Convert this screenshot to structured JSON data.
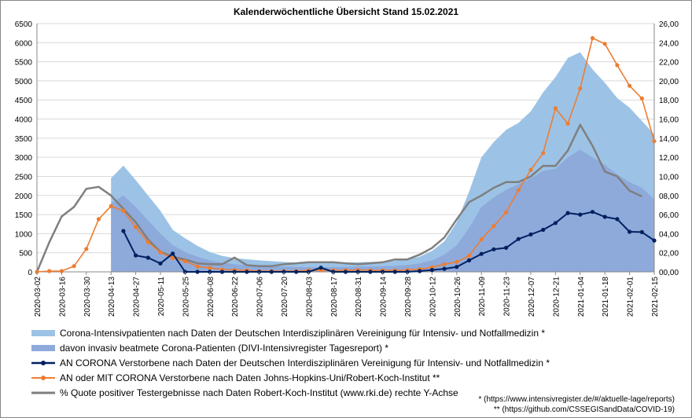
{
  "chart_data": {
    "type": "area",
    "title": "Kalenderwöchentliche Übersicht Stand 15.02.2021",
    "categories": [
      "2020-03-02",
      "2020-03-09",
      "2020-03-16",
      "2020-03-23",
      "2020-03-30",
      "2020-04-06",
      "2020-04-13",
      "2020-04-20",
      "2020-04-27",
      "2020-05-04",
      "2020-05-11",
      "2020-05-18",
      "2020-05-25",
      "2020-06-01",
      "2020-06-08",
      "2020-06-15",
      "2020-06-22",
      "2020-06-29",
      "2020-07-06",
      "2020-07-13",
      "2020-07-20",
      "2020-07-27",
      "2020-08-03",
      "2020-08-10",
      "2020-08-17",
      "2020-08-24",
      "2020-08-31",
      "2020-09-07",
      "2020-09-14",
      "2020-09-21",
      "2020-09-28",
      "2020-10-05",
      "2020-10-12",
      "2020-10-19",
      "2020-10-26",
      "2020-11-02",
      "2020-11-09",
      "2020-11-16",
      "2020-11-23",
      "2020-11-30",
      "2020-12-07",
      "2020-12-14",
      "2020-12-21",
      "2020-12-28",
      "2021-01-04",
      "2021-01-11",
      "2021-01-18",
      "2021-01-25",
      "2021-02-01",
      "2021-02-08",
      "2021-02-15"
    ],
    "tick_labels": [
      "2020-03-02",
      "2020-03-16",
      "2020-03-30",
      "2020-04-13",
      "2020-04-27",
      "2020-05-11",
      "2020-05-25",
      "2020-06-08",
      "2020-06-22",
      "2020-07-06",
      "2020-07-20",
      "2020-08-03",
      "2020-08-17",
      "2020-08-31",
      "2020-09-14",
      "2020-09-28",
      "2020-10-12",
      "2020-10-26",
      "2020-11-09",
      "2020-11-23",
      "2020-12-07",
      "2020-12-21",
      "2021-01-04",
      "2021-01-18",
      "2021-02-01",
      "2021-02-15"
    ],
    "y_left": {
      "min": 0,
      "max": 6500,
      "step": 500,
      "ticks": [
        "0",
        "500",
        "1000",
        "1500",
        "2000",
        "2500",
        "3000",
        "3500",
        "4000",
        "4500",
        "5000",
        "5500",
        "6000",
        "6500"
      ]
    },
    "y_right": {
      "min": 0,
      "max": 26,
      "step": 2,
      "ticks": [
        "00,00",
        "02,00",
        "04,00",
        "06,00",
        "08,00",
        "10,00",
        "12,00",
        "14,00",
        "16,00",
        "18,00",
        "20,00",
        "22,00",
        "24,00",
        "26,00"
      ]
    },
    "series": [
      {
        "name": "Corona-Intensivpatienten nach Daten der Deutschen Interdisziplinären Vereinigung für Intensiv- und Notfallmedizin *",
        "kind": "area",
        "axis": "left",
        "color": "#9cc3e6",
        "values": [
          null,
          null,
          null,
          null,
          null,
          null,
          2450,
          2780,
          2400,
          2000,
          1600,
          1100,
          880,
          680,
          520,
          420,
          360,
          330,
          300,
          280,
          260,
          240,
          230,
          230,
          240,
          240,
          250,
          260,
          270,
          290,
          330,
          400,
          550,
          800,
          1300,
          2100,
          3000,
          3400,
          3720,
          3900,
          4200,
          4700,
          5100,
          5600,
          5750,
          5300,
          4950,
          4550,
          4300,
          3950,
          3600
        ]
      },
      {
        "name": "davon invasiv beatmete Corona-Patienten (DIVI-Intensivregister Tagesreport)  *",
        "kind": "area",
        "axis": "left",
        "color": "#8eaadb",
        "values": [
          null,
          null,
          null,
          null,
          null,
          null,
          1800,
          2000,
          1700,
          1350,
          1000,
          700,
          520,
          400,
          300,
          240,
          200,
          180,
          160,
          150,
          140,
          130,
          125,
          125,
          130,
          130,
          135,
          140,
          150,
          160,
          180,
          220,
          300,
          450,
          700,
          1150,
          1700,
          1950,
          2150,
          2300,
          2450,
          2650,
          2700,
          3000,
          3200,
          3000,
          2800,
          2550,
          2350,
          2200,
          1900
        ]
      },
      {
        "name": "AN CORONA Verstorbene nach Daten der Deutschen Interdisziplinären Vereinigung für Intensiv- und Notfallmedizin *",
        "kind": "line-markers",
        "axis": "left",
        "color": "#002060",
        "values": [
          null,
          null,
          null,
          null,
          null,
          null,
          null,
          1070,
          430,
          370,
          220,
          480,
          0,
          0,
          0,
          0,
          0,
          0,
          0,
          0,
          0,
          0,
          0,
          110,
          0,
          0,
          0,
          0,
          0,
          0,
          0,
          20,
          50,
          80,
          130,
          300,
          470,
          590,
          630,
          860,
          980,
          1100,
          1280,
          1540,
          1500,
          1570,
          1440,
          1380,
          1050,
          1040,
          820
        ]
      },
      {
        "name": "AN oder MIT CORONA Verstorbene nach Daten Johns-Hopkins-Uni/Robert-Koch-Institut **",
        "kind": "line-markers",
        "axis": "left",
        "color": "#ed7d31",
        "values": [
          0,
          20,
          20,
          150,
          600,
          1380,
          1720,
          1600,
          1170,
          780,
          510,
          360,
          280,
          140,
          100,
          60,
          50,
          40,
          20,
          20,
          20,
          20,
          40,
          40,
          40,
          40,
          50,
          40,
          40,
          40,
          50,
          70,
          120,
          200,
          260,
          420,
          850,
          1200,
          1560,
          2140,
          2670,
          3110,
          4280,
          3880,
          4800,
          6120,
          5970,
          5410,
          4870,
          4540,
          3420
        ]
      },
      {
        "name": "% Quote positiver Testergebnisse nach Daten Robert-Koch-Institut (www.rki.de) rechte Y-Achse",
        "kind": "line",
        "axis": "right",
        "color": "#7f7f7f",
        "values": [
          0,
          3.1,
          5.8,
          6.8,
          8.7,
          8.9,
          8.0,
          6.6,
          5.2,
          3.4,
          2.1,
          1.6,
          1.3,
          0.9,
          0.8,
          0.8,
          1.5,
          0.7,
          0.6,
          0.6,
          0.8,
          0.9,
          1.0,
          1.0,
          1.0,
          0.9,
          0.8,
          0.9,
          1.0,
          1.3,
          1.3,
          1.8,
          2.5,
          3.6,
          5.5,
          7.3,
          8.0,
          8.8,
          9.4,
          9.4,
          10.0,
          11.1,
          11.1,
          12.7,
          15.4,
          13.2,
          10.5,
          10.0,
          8.5,
          7.9,
          null
        ]
      }
    ],
    "notes": [
      "* (https://www.intensivregister.de/#/aktuelle-lage/reports)",
      "** (https://github.com/CSSEGISandData/COVID-19)"
    ]
  }
}
